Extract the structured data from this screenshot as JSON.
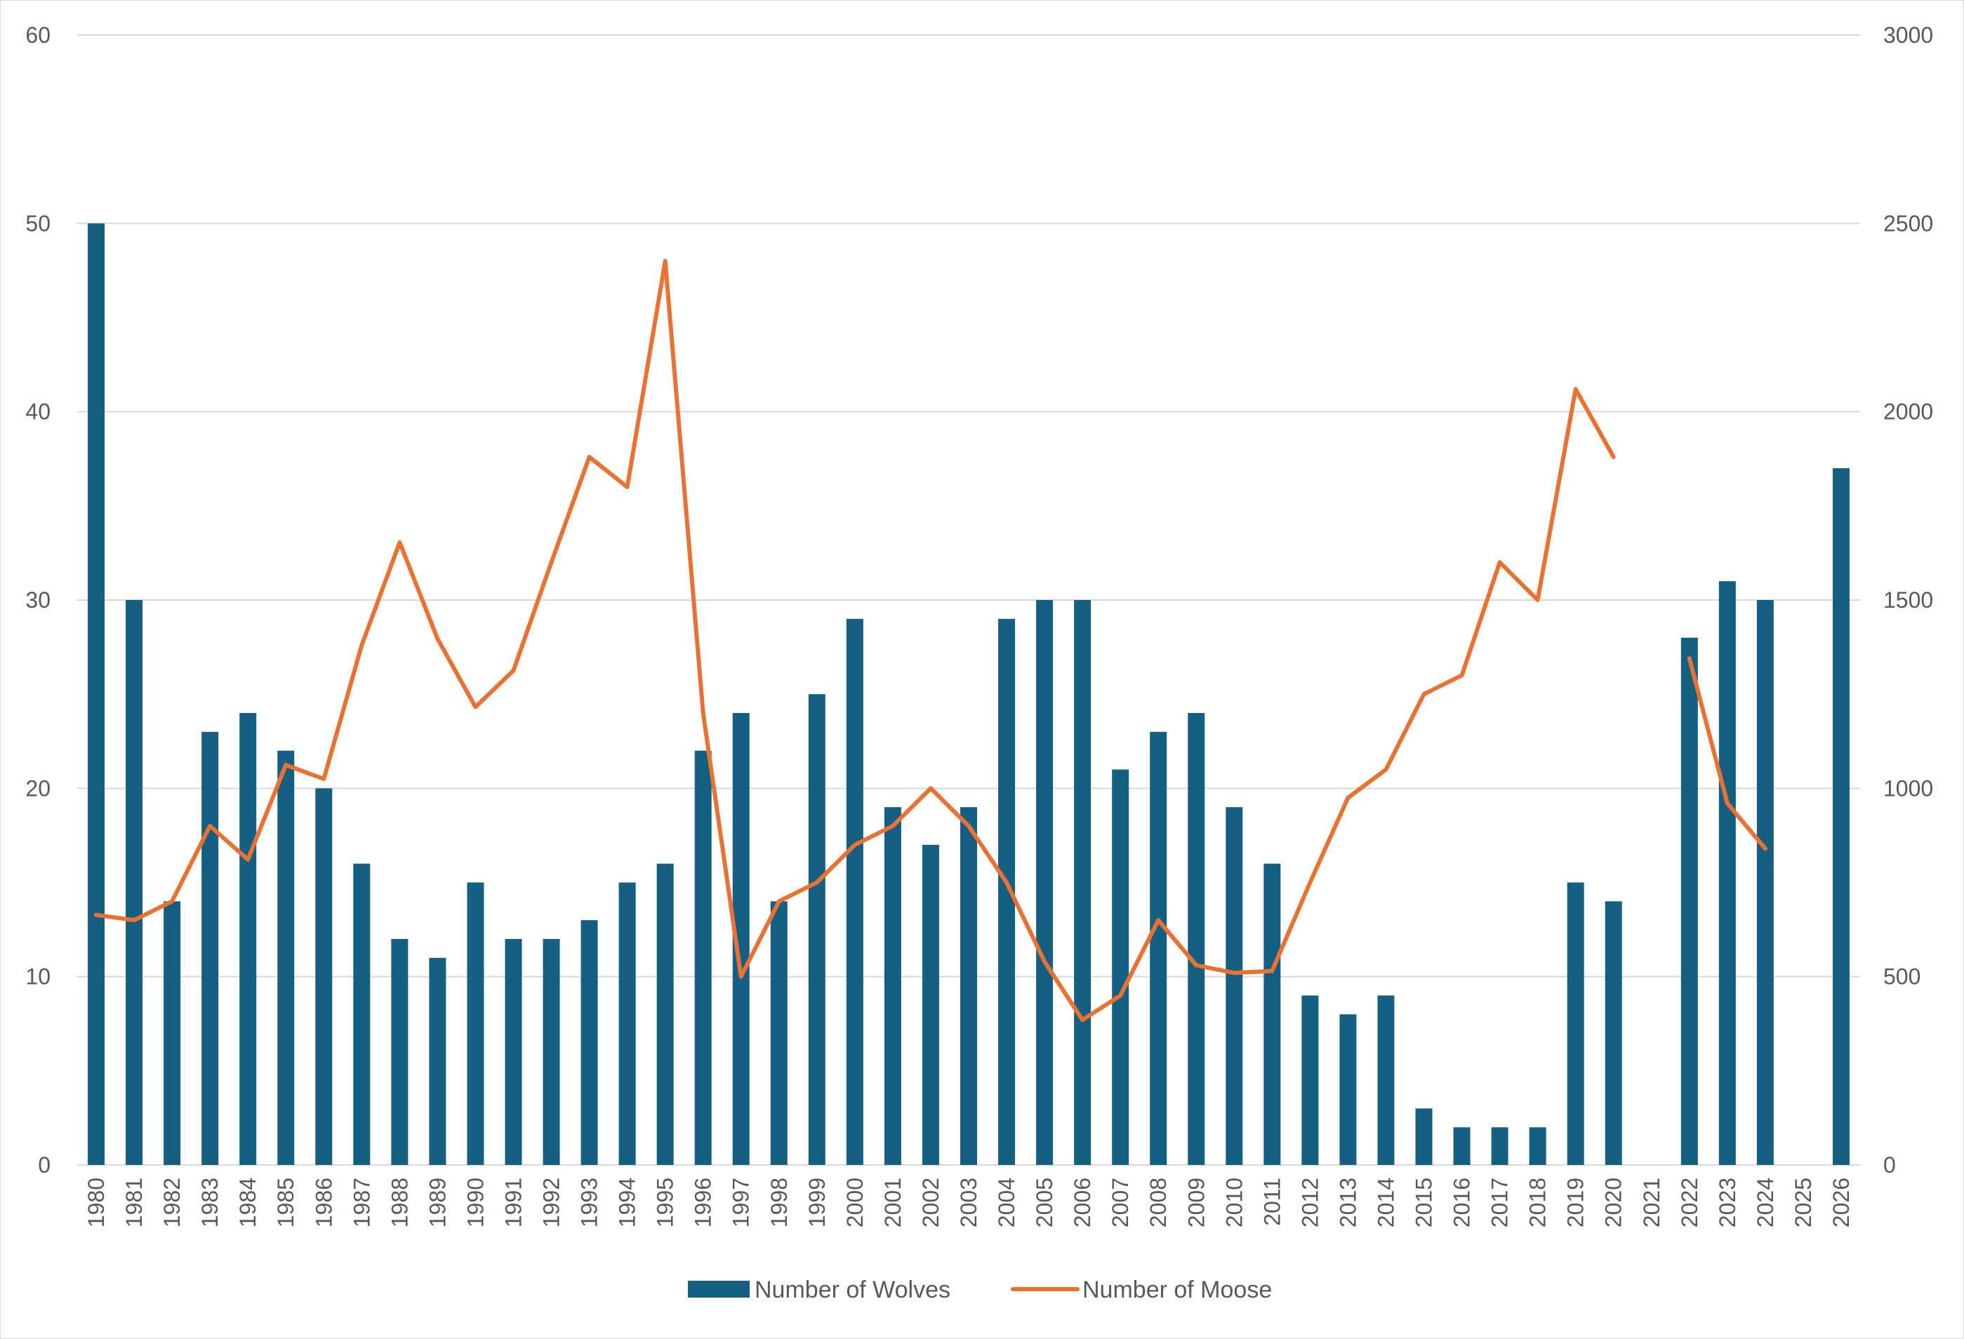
{
  "chart_data": {
    "type": "bar",
    "categories": [
      "1980",
      "1981",
      "1982",
      "1983",
      "1984",
      "1985",
      "1986",
      "1987",
      "1988",
      "1989",
      "1990",
      "1991",
      "1992",
      "1993",
      "1994",
      "1995",
      "1996",
      "1997",
      "1998",
      "1999",
      "2000",
      "2001",
      "2002",
      "2003",
      "2004",
      "2005",
      "2006",
      "2007",
      "2008",
      "2009",
      "2010",
      "2011",
      "2012",
      "2013",
      "2014",
      "2015",
      "2016",
      "2017",
      "2018",
      "2019",
      "2020",
      "2021",
      "2022",
      "2023",
      "2024",
      "2025",
      "2026"
    ],
    "series": [
      {
        "name": "Number of Wolves",
        "type": "bar",
        "axis": "left",
        "color": "#156082",
        "values": [
          50,
          30,
          14,
          23,
          24,
          22,
          20,
          16,
          12,
          11,
          15,
          12,
          12,
          13,
          15,
          16,
          22,
          24,
          14,
          25,
          29,
          19,
          17,
          19,
          29,
          30,
          30,
          21,
          23,
          24,
          19,
          16,
          9,
          8,
          9,
          3,
          2,
          2,
          2,
          15,
          14,
          null,
          28,
          31,
          30,
          null,
          37
        ]
      },
      {
        "name": "Number of Moose",
        "type": "line",
        "axis": "right",
        "color": "#E97132",
        "values": [
          664,
          650,
          700,
          900,
          811,
          1062,
          1025,
          1380,
          1653,
          1397,
          1216,
          1313,
          1600,
          1880,
          1800,
          2400,
          1200,
          500,
          700,
          750,
          850,
          900,
          1000,
          900,
          750,
          540,
          385,
          450,
          650,
          530,
          510,
          515,
          750,
          975,
          1050,
          1250,
          1300,
          1600,
          1500,
          2060,
          1880,
          null,
          1345,
          960,
          840,
          null,
          null
        ]
      }
    ],
    "y_left": {
      "min": 0,
      "max": 60,
      "ticks": [
        0,
        10,
        20,
        30,
        40,
        50,
        60
      ]
    },
    "y_right": {
      "min": 0,
      "max": 3000,
      "ticks": [
        0,
        500,
        1000,
        1500,
        2000,
        2500,
        3000
      ]
    },
    "grid": true,
    "legend_position": "bottom",
    "title": "",
    "xlabel": "",
    "ylabel": ""
  }
}
